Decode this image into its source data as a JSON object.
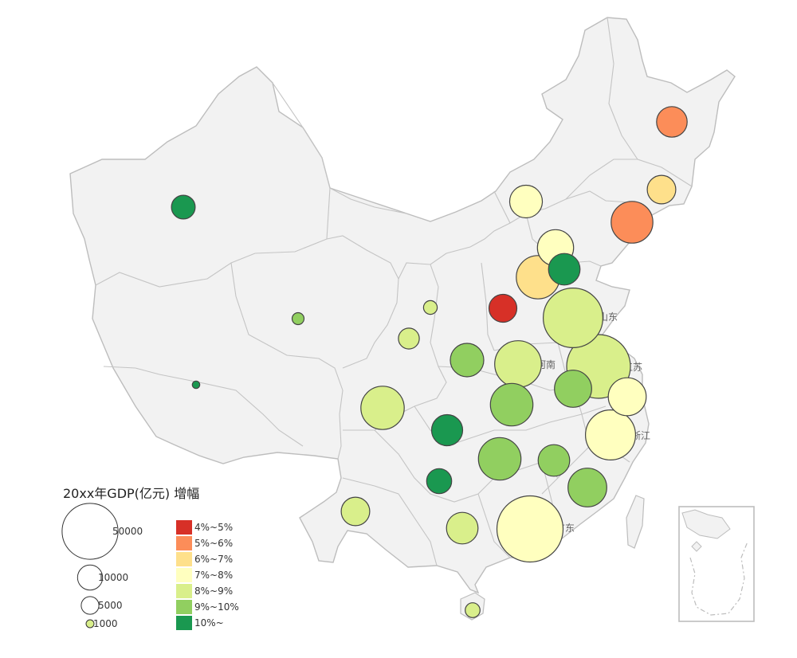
{
  "legend": {
    "title": "20xx年GDP(亿元) 增幅",
    "size_scale": [
      {
        "label": "50000",
        "value": 50000
      },
      {
        "label": "10000",
        "value": 10000
      },
      {
        "label": "5000",
        "value": 5000
      },
      {
        "label": "1000",
        "value": 1000
      }
    ],
    "color_scale": [
      {
        "label": "4%~5%",
        "color": "#d73027"
      },
      {
        "label": "5%~6%",
        "color": "#fc8d59"
      },
      {
        "label": "6%~7%",
        "color": "#fee08b"
      },
      {
        "label": "7%~8%",
        "color": "#ffffbf"
      },
      {
        "label": "8%~9%",
        "color": "#d9ef8b"
      },
      {
        "label": "9%~10%",
        "color": "#91cf60"
      },
      {
        "label": "10%~",
        "color": "#1a9850"
      }
    ]
  },
  "province_labels": [
    "山东",
    "河南",
    "江苏",
    "浙江",
    "广东"
  ],
  "colors": {
    "land": "#f2f2f2",
    "border": "#bdbdbd",
    "bubble_stroke": "#444444"
  },
  "map_data": {
    "type": "bubble-map",
    "bubbles": [
      {
        "id": "heilongjiang",
        "color": "#fc8d59",
        "gdp": 15000
      },
      {
        "id": "jilin",
        "color": "#fee08b",
        "gdp": 13000
      },
      {
        "id": "liaoning",
        "color": "#fc8d59",
        "gdp": 28000
      },
      {
        "id": "neimenggu",
        "color": "#ffffbf",
        "gdp": 17000
      },
      {
        "id": "beijing",
        "color": "#ffffbf",
        "gdp": 21000
      },
      {
        "id": "tianjin",
        "color": "#1a9850",
        "gdp": 16000
      },
      {
        "id": "hebei",
        "color": "#fee08b",
        "gdp": 30000
      },
      {
        "id": "shanxi",
        "color": "#d73027",
        "gdp": 12500
      },
      {
        "id": "shandong",
        "color": "#d9ef8b",
        "gdp": 57000
      },
      {
        "id": "henan",
        "color": "#d9ef8b",
        "gdp": 35000
      },
      {
        "id": "jiangsu",
        "color": "#d9ef8b",
        "gdp": 65000
      },
      {
        "id": "shanghai",
        "color": "#ffffbf",
        "gdp": 23000
      },
      {
        "id": "anhui",
        "color": "#91cf60",
        "gdp": 22000
      },
      {
        "id": "zhejiang",
        "color": "#ffffbf",
        "gdp": 40000
      },
      {
        "id": "hubei",
        "color": "#91cf60",
        "gdp": 29000
      },
      {
        "id": "hunan",
        "color": "#91cf60",
        "gdp": 29000
      },
      {
        "id": "jiangxi",
        "color": "#91cf60",
        "gdp": 16000
      },
      {
        "id": "fujian",
        "color": "#91cf60",
        "gdp": 24000
      },
      {
        "id": "guangdong",
        "color": "#ffffbf",
        "gdp": 70000
      },
      {
        "id": "guangxi",
        "color": "#d9ef8b",
        "gdp": 16000
      },
      {
        "id": "hainan",
        "color": "#d9ef8b",
        "gdp": 3500
      },
      {
        "id": "shaanxi",
        "color": "#91cf60",
        "gdp": 18000
      },
      {
        "id": "ningxia",
        "color": "#d9ef8b",
        "gdp": 3000
      },
      {
        "id": "gansu",
        "color": "#d9ef8b",
        "gdp": 7000
      },
      {
        "id": "chongqing",
        "color": "#1a9850",
        "gdp": 15500
      },
      {
        "id": "guizhou",
        "color": "#1a9850",
        "gdp": 10000
      },
      {
        "id": "sichuan",
        "color": "#d9ef8b",
        "gdp": 30000
      },
      {
        "id": "yunnan",
        "color": "#d9ef8b",
        "gdp": 13000
      },
      {
        "id": "qinghai",
        "color": "#91cf60",
        "gdp": 2300
      },
      {
        "id": "xinjiang",
        "color": "#1a9850",
        "gdp": 9000
      },
      {
        "id": "xizang",
        "color": "#1a9850",
        "gdp": 900
      }
    ]
  }
}
